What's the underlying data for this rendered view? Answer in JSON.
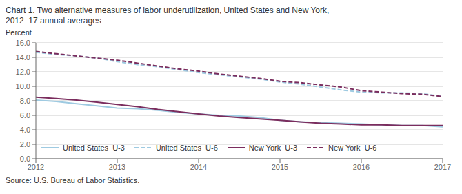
{
  "chart_data": {
    "type": "line",
    "title": "Chart 1. Two alternative measures of labor underutilization, United States and New York,",
    "subtitle": "2012–17 annual averages",
    "y_label": "Percent",
    "annotations": [
      "Source: U.S. Bureau of Labor Statistics."
    ],
    "x": [
      2012,
      2012.25,
      2012.5,
      2012.75,
      2013,
      2013.25,
      2013.5,
      2013.75,
      2014,
      2014.25,
      2014.5,
      2014.75,
      2015,
      2015.25,
      2015.5,
      2015.75,
      2016,
      2016.25,
      2016.5,
      2016.75,
      2017
    ],
    "series": [
      {
        "name": "United States  U-3",
        "color": "#9ecae1",
        "line_style": "solid",
        "values": [
          8.1,
          7.9,
          7.6,
          7.3,
          7.0,
          6.9,
          6.7,
          6.4,
          6.2,
          6.0,
          5.9,
          5.7,
          5.3,
          5.1,
          5.0,
          4.9,
          4.8,
          4.7,
          4.6,
          4.6,
          4.4
        ]
      },
      {
        "name": "United States  U-6",
        "color": "#9ecae1",
        "line_style": "dashed",
        "values": [
          14.7,
          14.4,
          14.2,
          13.9,
          13.4,
          13.0,
          12.7,
          12.3,
          11.9,
          11.6,
          11.3,
          11.0,
          10.6,
          10.3,
          9.9,
          9.5,
          9.2,
          9.1,
          9.1,
          9.0,
          8.6
        ]
      },
      {
        "name": "New York  U-3",
        "color": "#7b2d5e",
        "line_style": "solid",
        "values": [
          8.5,
          8.3,
          8.1,
          7.8,
          7.5,
          7.2,
          6.8,
          6.5,
          6.2,
          5.9,
          5.7,
          5.5,
          5.3,
          5.1,
          4.9,
          4.8,
          4.7,
          4.7,
          4.6,
          4.6,
          4.6
        ]
      },
      {
        "name": "New York  U-6",
        "color": "#7b2d5e",
        "line_style": "dashed",
        "values": [
          14.8,
          14.5,
          14.2,
          13.9,
          13.6,
          13.2,
          12.8,
          12.4,
          12.1,
          11.7,
          11.4,
          11.1,
          10.7,
          10.5,
          10.2,
          9.9,
          9.4,
          9.2,
          9.0,
          8.9,
          8.6
        ]
      }
    ],
    "xlim": [
      2012,
      2017
    ],
    "xticks": [
      2012,
      2013,
      2014,
      2015,
      2016,
      2017
    ],
    "ylim": [
      0.0,
      16.0
    ],
    "yticks": [
      {
        "value": 0,
        "label": "0.0"
      },
      {
        "value": 2,
        "label": "2.0"
      },
      {
        "value": 4,
        "label": "4.0"
      },
      {
        "value": 6,
        "label": "6.0"
      },
      {
        "value": 8,
        "label": "8.0"
      },
      {
        "value": 10,
        "label": "10.0"
      },
      {
        "value": 12,
        "label": "12.0"
      },
      {
        "value": 14,
        "label": "14.0"
      },
      {
        "value": 16,
        "label": "16.0"
      }
    ],
    "grid": true,
    "legend": "lower left"
  }
}
